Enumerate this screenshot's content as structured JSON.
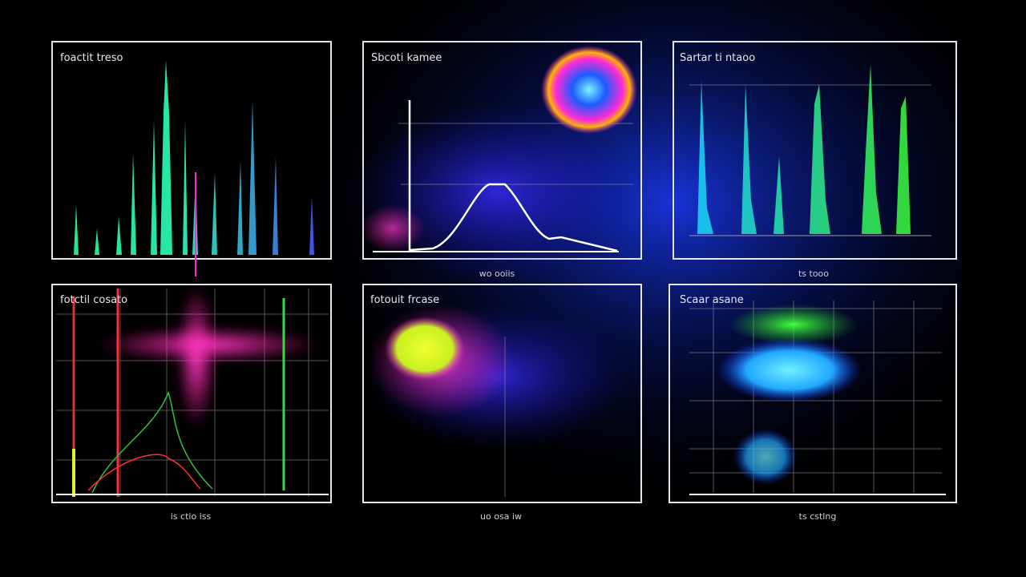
{
  "panels": [
    {
      "title": "foactit treso",
      "x_label": null
    },
    {
      "title": "Sbcoti kamee",
      "x_label": "wo ooiis"
    },
    {
      "title": "Sartar ti ntaoo",
      "x_label": "ts tooo"
    },
    {
      "title": "fotctil cosato",
      "x_label": "is ctio iss"
    },
    {
      "title": "fotouit frcase",
      "x_label": "uo osa iw"
    },
    {
      "title": "Scaar asane",
      "x_label": "ts cstlng"
    }
  ]
}
